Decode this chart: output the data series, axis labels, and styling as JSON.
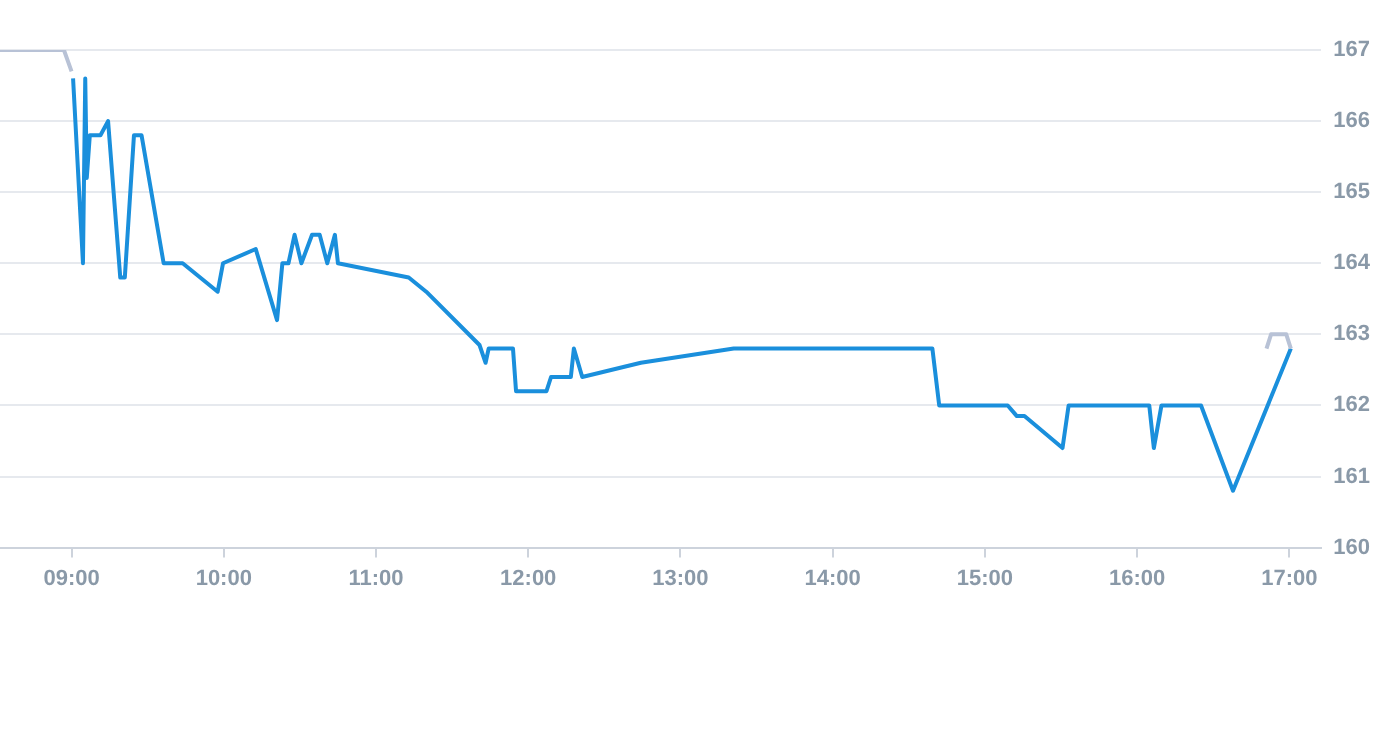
{
  "chart_data": {
    "type": "line",
    "xlim": [
      8.53,
      17.21
    ],
    "ylim": [
      160,
      167
    ],
    "xticks": [
      {
        "value": 9,
        "label": "09:00"
      },
      {
        "value": 10,
        "label": "10:00"
      },
      {
        "value": 11,
        "label": "11:00"
      },
      {
        "value": 12,
        "label": "12:00"
      },
      {
        "value": 13,
        "label": "13:00"
      },
      {
        "value": 14,
        "label": "14:00"
      },
      {
        "value": 15,
        "label": "15:00"
      },
      {
        "value": 16,
        "label": "16:00"
      },
      {
        "value": 17,
        "label": "17:00"
      }
    ],
    "yticks": [
      160,
      161,
      162,
      163,
      164,
      165,
      166,
      167
    ],
    "grid": "y",
    "legend": false,
    "marker": "none",
    "line_style": "solid",
    "series": [
      {
        "color": "#b8c2d6",
        "x": [
          8.53,
          8.95,
          9.0
        ],
        "values": [
          167.0,
          167.0,
          166.7
        ]
      },
      {
        "color": "#b8c2d6",
        "x": [
          16.85,
          16.88,
          16.98,
          17.01
        ],
        "values": [
          162.8,
          163.0,
          163.0,
          162.8
        ]
      },
      {
        "color": "#1a8fdc",
        "x": [
          9.01,
          9.075,
          9.09,
          9.1,
          9.12,
          9.19,
          9.24,
          9.32,
          9.35,
          9.41,
          9.46,
          9.605,
          9.73,
          9.96,
          9.995,
          10.21,
          10.35,
          10.385,
          10.425,
          10.465,
          10.51,
          10.58,
          10.63,
          10.68,
          10.73,
          10.75,
          11.215,
          11.33,
          11.68,
          11.72,
          11.74,
          11.9,
          11.92,
          12.12,
          12.15,
          12.28,
          12.3,
          12.355,
          12.74,
          13.35,
          14.655,
          14.7,
          15.15,
          15.21,
          15.26,
          15.51,
          15.55,
          16.08,
          16.11,
          16.16,
          16.42,
          16.63,
          17.01
        ],
        "values": [
          166.6,
          164.0,
          166.6,
          165.2,
          165.8,
          165.8,
          166.0,
          163.8,
          163.8,
          165.8,
          165.8,
          164.0,
          164.0,
          163.6,
          164.0,
          164.2,
          163.2,
          164.0,
          164.0,
          164.4,
          164.0,
          164.4,
          164.4,
          164.0,
          164.4,
          164.0,
          163.8,
          163.6,
          162.85,
          162.6,
          162.8,
          162.8,
          162.2,
          162.2,
          162.4,
          162.4,
          162.8,
          162.4,
          162.6,
          162.8,
          162.8,
          162.0,
          162.0,
          161.85,
          161.85,
          161.4,
          162.0,
          162.0,
          161.4,
          162.0,
          162.0,
          160.8,
          162.8
        ]
      }
    ]
  }
}
